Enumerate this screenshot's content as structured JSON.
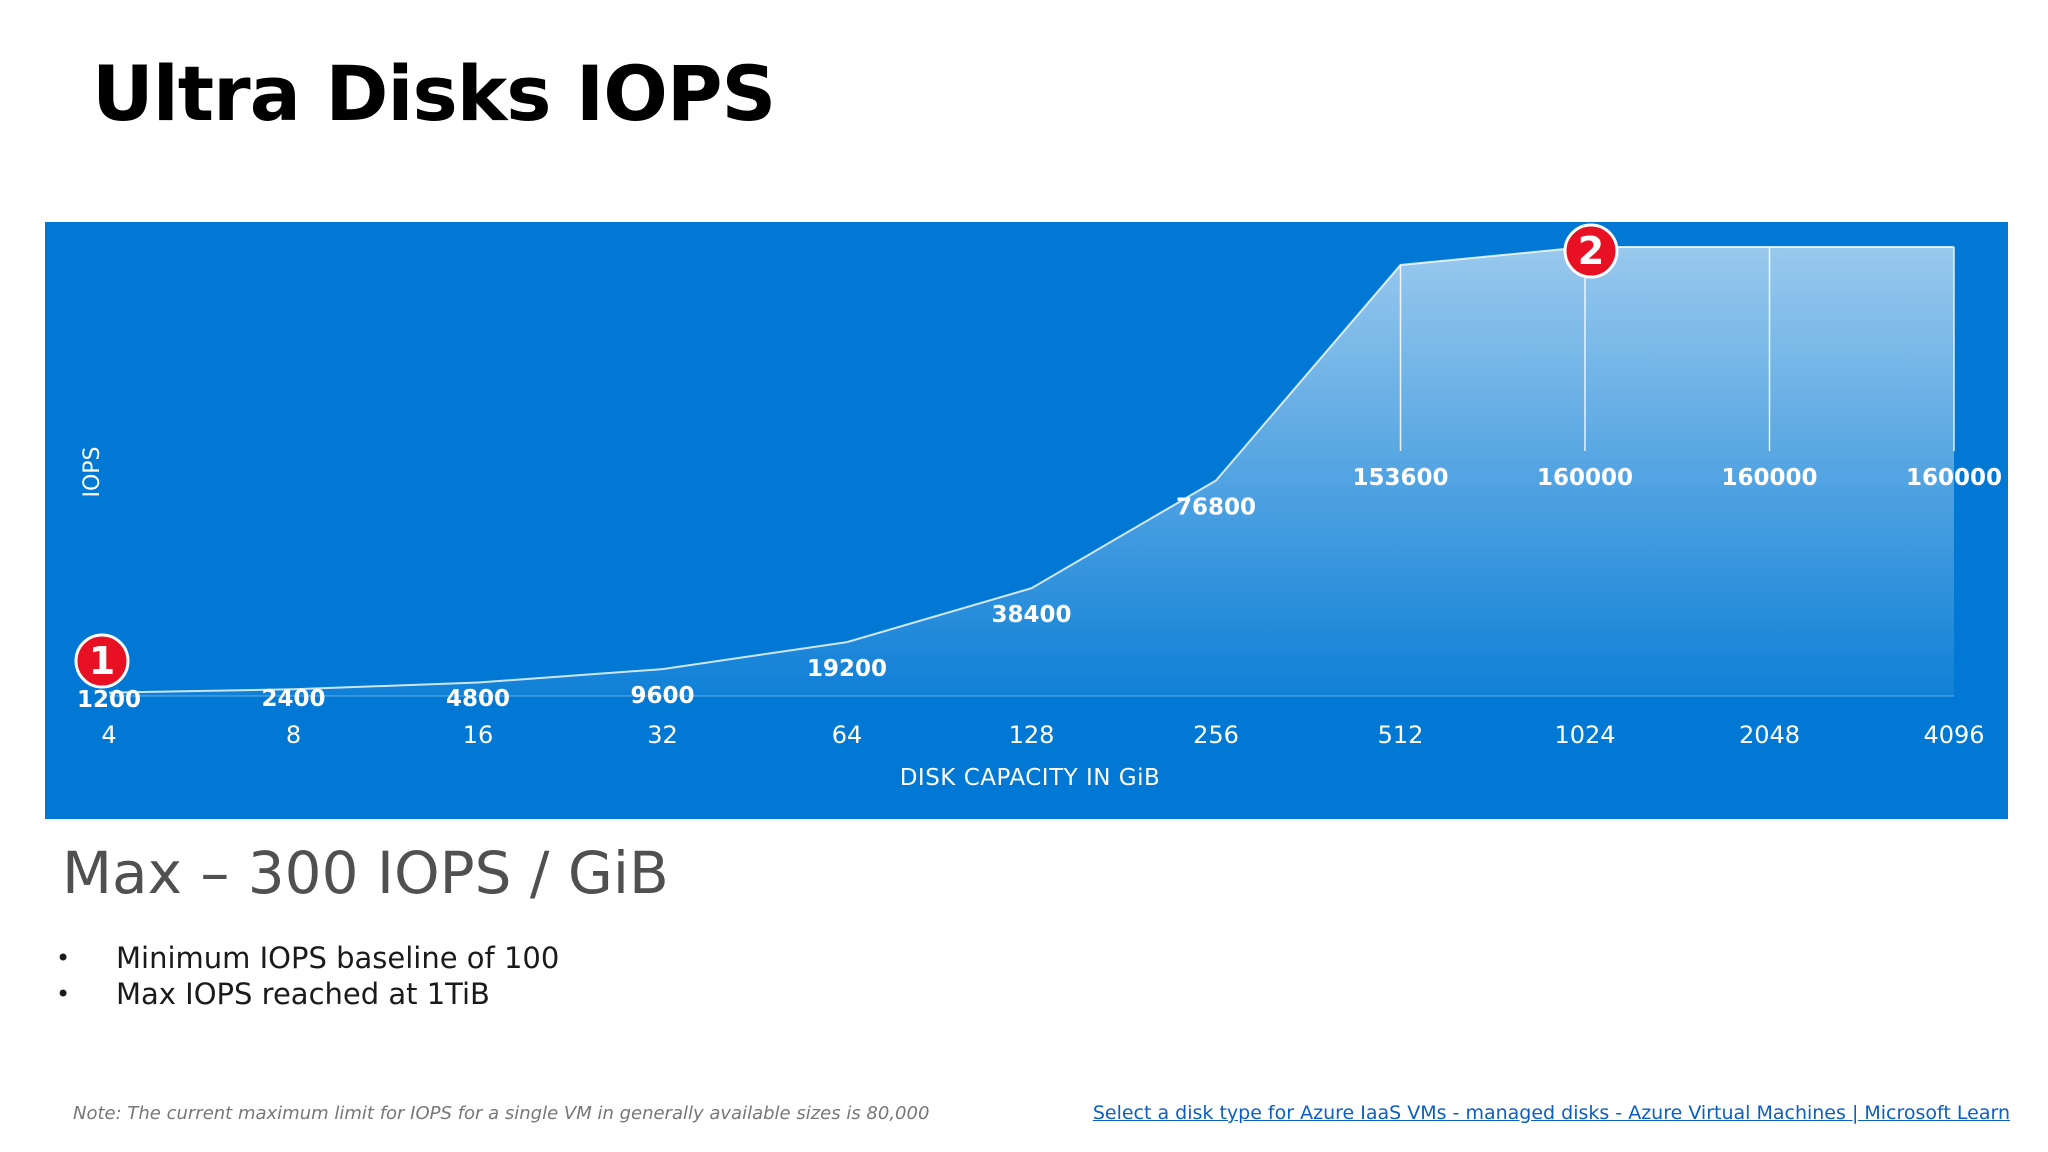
{
  "slide": {
    "title": "Ultra Disks IOPS",
    "subheading": "Max – 300 IOPS / GiB",
    "bullets": [
      "Minimum IOPS baseline of 100",
      "Max IOPS reached at 1TiB"
    ],
    "bullet_symbol": "•",
    "note": "Note: The current maximum limit for IOPS for a single VM in generally available sizes is 80,000",
    "link_text": "Select a disk type for Azure IaaS VMs - managed disks - Azure Virtual Machines | Microsoft Learn"
  },
  "colors": {
    "panel_background": "#0078d4",
    "area_fill": "#ffffff",
    "marker_fill": "#e81123",
    "link": "#0b5fc4"
  },
  "chart_data": {
    "type": "area",
    "title": "",
    "xlabel": "DISK CAPACITY IN GiB",
    "ylabel": "IOPS",
    "categories": [
      "4",
      "8",
      "16",
      "32",
      "64",
      "128",
      "256",
      "512",
      "1024",
      "2048",
      "4096"
    ],
    "series": [
      {
        "name": "IOPS",
        "values": [
          1200,
          2400,
          4800,
          9600,
          19200,
          38400,
          76800,
          153600,
          160000,
          160000,
          160000
        ]
      }
    ],
    "data_labels": [
      "1200",
      "2400",
      "4800",
      "9600",
      "19200",
      "38400",
      "76800",
      "153600",
      "160000",
      "160000",
      "160000"
    ],
    "ylim": [
      0,
      160000
    ],
    "grid": false,
    "markers": [
      {
        "label": "1",
        "category_index": 0
      },
      {
        "label": "2",
        "category_index": 8
      }
    ]
  }
}
